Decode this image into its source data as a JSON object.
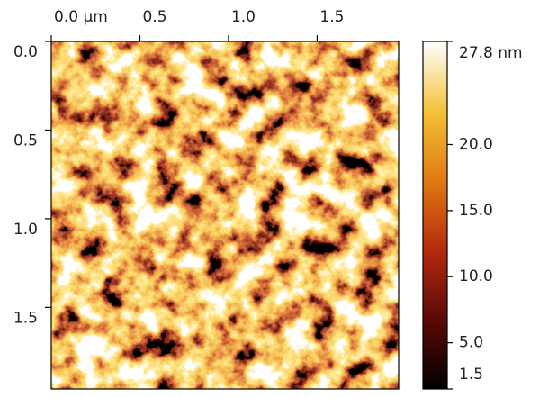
{
  "chart_data": {
    "type": "image",
    "xlim": [
      0,
      1.96
    ],
    "ylim": [
      0,
      1.96
    ],
    "xticks": [
      {
        "value": 0,
        "label": "0.0 µm"
      },
      0.5,
      {
        "value": 1,
        "label": "1.0"
      },
      1.5
    ],
    "yticks": [
      {
        "value": 0,
        "label": "0.0"
      },
      0.5,
      {
        "value": 1,
        "label": "1.0"
      },
      1.5
    ],
    "colorbar": {
      "lim": [
        1.5,
        27.8
      ],
      "ticks": [
        {
          "value": 27.8,
          "label": "27.8 nm"
        },
        {
          "value": 20,
          "label": "20.0"
        },
        {
          "value": 15,
          "label": "15.0"
        },
        {
          "value": 10,
          "label": "10.0"
        },
        {
          "value": 5,
          "label": "5.0"
        },
        1.5
      ]
    }
  }
}
